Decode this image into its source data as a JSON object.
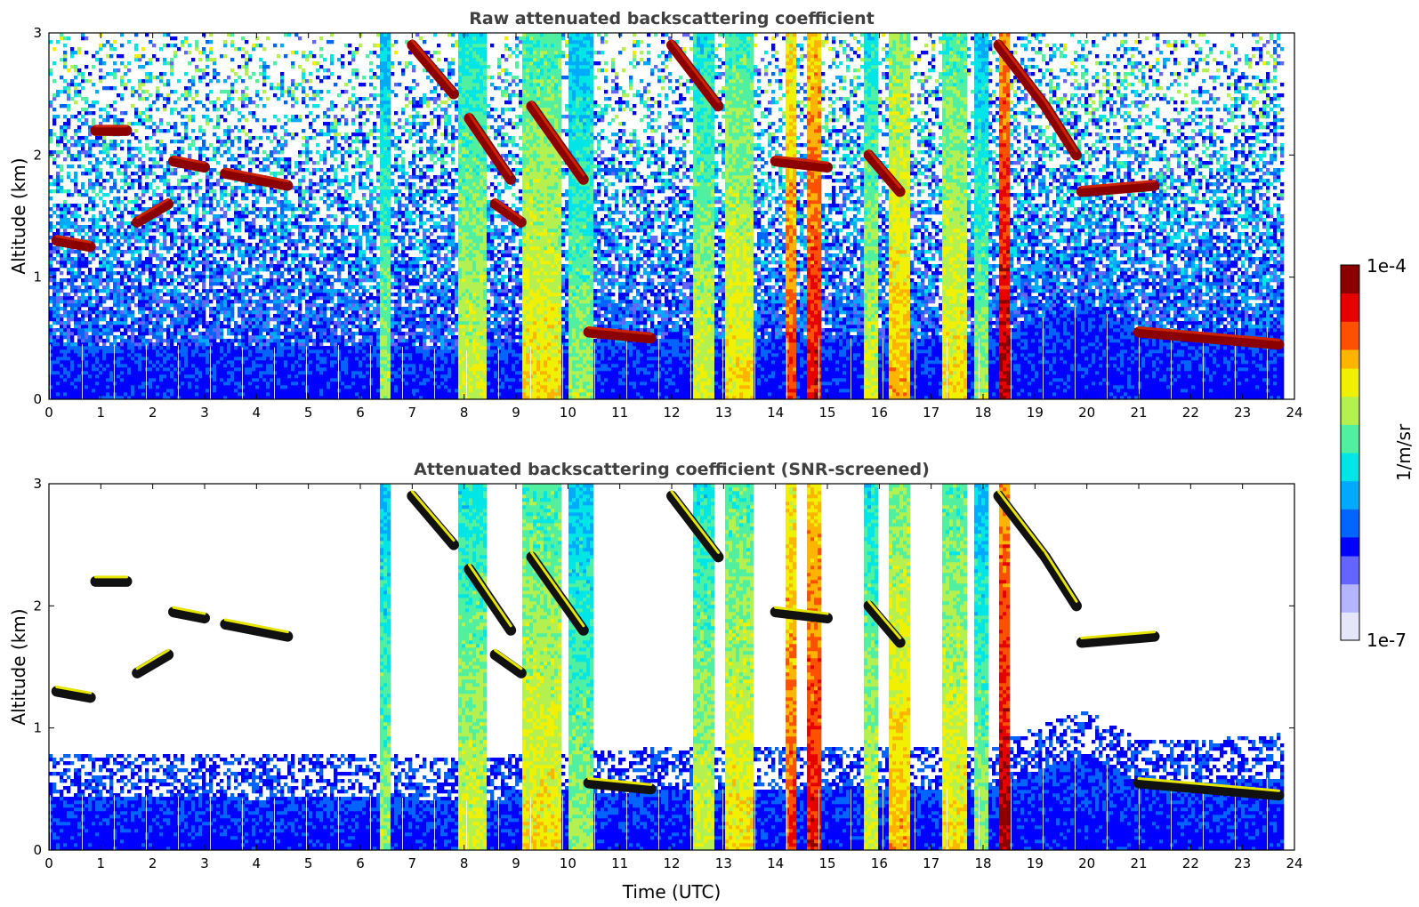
{
  "chart_data": [
    {
      "type": "heatmap",
      "title": "Raw attenuated backscattering coefficient",
      "xlabel": "",
      "ylabel": "Altitude (km)",
      "xlim": [
        0,
        24
      ],
      "ylim": [
        0,
        3
      ],
      "xticks": [
        "0",
        "1",
        "2",
        "3",
        "4",
        "5",
        "6",
        "7",
        "8",
        "9",
        "10",
        "11",
        "12",
        "13",
        "14",
        "15",
        "16",
        "17",
        "18",
        "19",
        "20",
        "21",
        "22",
        "23",
        "24"
      ],
      "yticks": [
        "0",
        "1",
        "2",
        "3"
      ],
      "features": {
        "boundary_layer": [
          [
            0,
            0.45
          ],
          [
            2,
            0.45
          ],
          [
            4,
            0.42
          ],
          [
            6,
            0.45
          ],
          [
            8,
            0.4
          ],
          [
            10,
            0.45
          ],
          [
            12,
            0.5
          ],
          [
            14,
            0.5
          ],
          [
            16,
            0.5
          ],
          [
            18,
            0.5
          ],
          [
            20,
            0.8
          ],
          [
            21,
            0.55
          ],
          [
            22,
            0.55
          ],
          [
            23.8,
            0.6
          ]
        ],
        "cloud_segments": [
          {
            "t0": 0.15,
            "t1": 0.8,
            "alt0": 1.3,
            "alt1": 1.25
          },
          {
            "t0": 0.9,
            "t1": 1.5,
            "alt0": 2.2,
            "alt1": 2.2
          },
          {
            "t0": 1.7,
            "t1": 2.3,
            "alt0": 1.45,
            "alt1": 1.6
          },
          {
            "t0": 2.4,
            "t1": 3.0,
            "alt0": 1.95,
            "alt1": 1.9
          },
          {
            "t0": 3.4,
            "t1": 4.6,
            "alt0": 1.85,
            "alt1": 1.75
          },
          {
            "t0": 7.0,
            "t1": 7.8,
            "alt0": 2.9,
            "alt1": 2.5
          },
          {
            "t0": 8.1,
            "t1": 8.9,
            "alt0": 2.3,
            "alt1": 1.8
          },
          {
            "t0": 8.6,
            "t1": 9.1,
            "alt0": 1.6,
            "alt1": 1.45
          },
          {
            "t0": 9.3,
            "t1": 10.3,
            "alt0": 2.4,
            "alt1": 1.8
          },
          {
            "t0": 10.4,
            "t1": 11.6,
            "alt0": 0.55,
            "alt1": 0.5
          },
          {
            "t0": 12.0,
            "t1": 12.9,
            "alt0": 2.9,
            "alt1": 2.4
          },
          {
            "t0": 14.0,
            "t1": 15.0,
            "alt0": 1.95,
            "alt1": 1.9
          },
          {
            "t0": 15.8,
            "t1": 16.4,
            "alt0": 2.0,
            "alt1": 1.7
          },
          {
            "t0": 18.3,
            "t1": 19.2,
            "alt0": 2.9,
            "alt1": 2.4
          },
          {
            "t0": 19.2,
            "t1": 19.8,
            "alt0": 2.4,
            "alt1": 2.0
          },
          {
            "t0": 19.9,
            "t1": 21.3,
            "alt0": 1.7,
            "alt1": 1.75
          },
          {
            "t0": 21.0,
            "t1": 23.7,
            "alt0": 0.55,
            "alt1": 0.45
          }
        ],
        "precipitation_bands": [
          {
            "t0": 6.4,
            "t1": 6.6,
            "intensity": 0.6
          },
          {
            "t0": 7.9,
            "t1": 8.4,
            "intensity": 0.65
          },
          {
            "t0": 9.1,
            "t1": 9.9,
            "intensity": 0.7
          },
          {
            "t0": 10.0,
            "t1": 10.5,
            "intensity": 0.6
          },
          {
            "t0": 12.4,
            "t1": 12.8,
            "intensity": 0.65
          },
          {
            "t0": 13.0,
            "t1": 13.6,
            "intensity": 0.7
          },
          {
            "t0": 14.2,
            "t1": 14.4,
            "intensity": 0.85
          },
          {
            "t0": 14.6,
            "t1": 14.9,
            "intensity": 0.9
          },
          {
            "t0": 15.7,
            "t1": 16.0,
            "intensity": 0.65
          },
          {
            "t0": 16.2,
            "t1": 16.6,
            "intensity": 0.75
          },
          {
            "t0": 17.2,
            "t1": 17.7,
            "intensity": 0.7
          },
          {
            "t0": 17.8,
            "t1": 18.1,
            "intensity": 0.6
          },
          {
            "t0": 18.3,
            "t1": 18.5,
            "intensity": 0.95
          }
        ]
      }
    },
    {
      "type": "heatmap",
      "title": "Attenuated backscattering coefficient (SNR-screened)",
      "xlabel": "Time (UTC)",
      "ylabel": "Altitude (km)",
      "xlim": [
        0,
        24
      ],
      "ylim": [
        0,
        3
      ],
      "xticks": [
        "0",
        "1",
        "2",
        "3",
        "4",
        "5",
        "6",
        "7",
        "8",
        "9",
        "10",
        "11",
        "12",
        "13",
        "14",
        "15",
        "16",
        "17",
        "18",
        "19",
        "20",
        "21",
        "22",
        "23",
        "24"
      ],
      "yticks": [
        "0",
        "1",
        "2",
        "3"
      ],
      "screened": true
    }
  ],
  "colorbar": {
    "label": "1/m/sr",
    "max_label": "1e-4",
    "min_label": "1e-7",
    "scale": "log",
    "colors": [
      "#e6e6fa",
      "#b4b4ff",
      "#6464ff",
      "#0000ff",
      "#0064ff",
      "#00aaff",
      "#00e6e6",
      "#50f0a0",
      "#b4f050",
      "#f0f000",
      "#ffb400",
      "#ff5000",
      "#e60000",
      "#8b0000"
    ]
  }
}
